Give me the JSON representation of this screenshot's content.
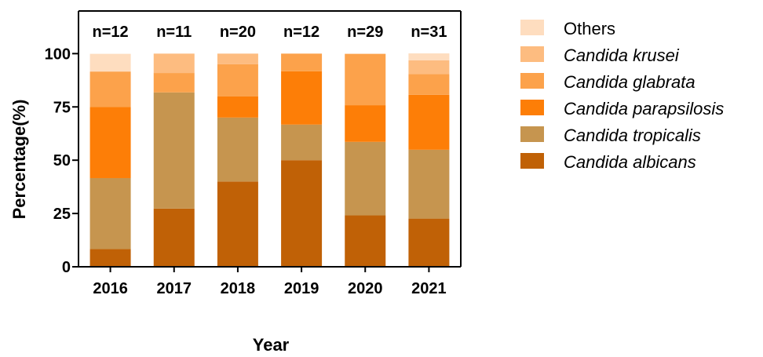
{
  "chart_data": {
    "type": "bar",
    "stacked": true,
    "xlabel": "Year",
    "ylabel": "Percentage(%)",
    "ylim": [
      0,
      120
    ],
    "yticks": [
      0,
      25,
      50,
      75,
      100
    ],
    "grid": false,
    "legend_position": "right",
    "categories": [
      "2016",
      "2017",
      "2018",
      "2019",
      "2020",
      "2021"
    ],
    "counts": [
      "n=12",
      "n=11",
      "n=20",
      "n=12",
      "n=29",
      "n=31"
    ],
    "series": [
      {
        "name": "Candida albicans",
        "italic": true,
        "color": "#C06106",
        "values": [
          8.3,
          27.3,
          40.0,
          50.0,
          24.1,
          22.6
        ]
      },
      {
        "name": "Candida tropicalis",
        "italic": true,
        "color": "#C6954F",
        "values": [
          33.3,
          54.5,
          30.0,
          16.7,
          34.5,
          32.3
        ]
      },
      {
        "name": "Candida parapsilosis",
        "italic": true,
        "color": "#FD7E07",
        "values": [
          33.3,
          0,
          10.0,
          25.0,
          17.2,
          25.8
        ]
      },
      {
        "name": "Candida glabrata",
        "italic": true,
        "color": "#FCA24B",
        "values": [
          16.7,
          9.1,
          15.0,
          8.3,
          24.1,
          9.7
        ]
      },
      {
        "name": "Candida krusei",
        "italic": true,
        "color": "#FDBC80",
        "values": [
          0,
          9.1,
          5.0,
          0,
          0,
          6.5
        ]
      },
      {
        "name": "Others",
        "italic": false,
        "color": "#FEDDBF",
        "values": [
          8.3,
          0,
          0,
          0,
          0,
          3.2
        ]
      }
    ],
    "legend_order": [
      "Others",
      "Candida krusei",
      "Candida glabrata",
      "Candida parapsilosis",
      "Candida tropicalis",
      "Candida albicans"
    ]
  }
}
